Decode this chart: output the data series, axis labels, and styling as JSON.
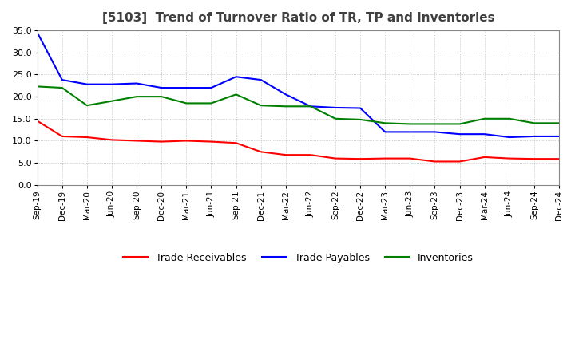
{
  "title": "[5103]  Trend of Turnover Ratio of TR, TP and Inventories",
  "ylim": [
    0,
    35
  ],
  "yticks": [
    0.0,
    5.0,
    10.0,
    15.0,
    20.0,
    25.0,
    30.0,
    35.0
  ],
  "ytick_labels": [
    "0.0",
    "5.0",
    "10.0",
    "15.0",
    "20.0",
    "25.0",
    "30.0",
    "35.0"
  ],
  "x_labels": [
    "Sep-19",
    "Dec-19",
    "Mar-20",
    "Jun-20",
    "Sep-20",
    "Dec-20",
    "Mar-21",
    "Jun-21",
    "Sep-21",
    "Dec-21",
    "Mar-22",
    "Jun-22",
    "Sep-22",
    "Dec-22",
    "Mar-23",
    "Jun-23",
    "Sep-23",
    "Dec-23",
    "Mar-24",
    "Jun-24",
    "Sep-24",
    "Dec-24"
  ],
  "trade_receivables": [
    14.5,
    11.0,
    10.8,
    10.2,
    10.0,
    9.8,
    10.0,
    9.8,
    9.5,
    7.5,
    6.8,
    6.8,
    6.0,
    5.9,
    6.0,
    6.0,
    5.3,
    5.3,
    6.3,
    6.0,
    5.9,
    5.9
  ],
  "trade_payables": [
    34.5,
    23.8,
    22.8,
    22.8,
    23.0,
    22.0,
    22.0,
    22.0,
    24.5,
    23.8,
    20.5,
    17.8,
    17.5,
    17.4,
    12.0,
    12.0,
    12.0,
    11.5,
    11.5,
    10.8,
    11.0,
    11.0
  ],
  "inventories": [
    22.3,
    22.0,
    18.0,
    19.0,
    20.0,
    20.0,
    18.5,
    18.5,
    20.5,
    18.0,
    17.8,
    17.8,
    15.0,
    14.8,
    14.0,
    13.8,
    13.8,
    13.8,
    15.0,
    15.0,
    14.0,
    14.0
  ],
  "color_tr": "#ff0000",
  "color_tp": "#0000ff",
  "color_inv": "#008000",
  "legend_labels": [
    "Trade Receivables",
    "Trade Payables",
    "Inventories"
  ],
  "grid_color": "#aaaaaa",
  "background_color": "#ffffff",
  "title_color": "#404040",
  "title_fontsize": 11
}
